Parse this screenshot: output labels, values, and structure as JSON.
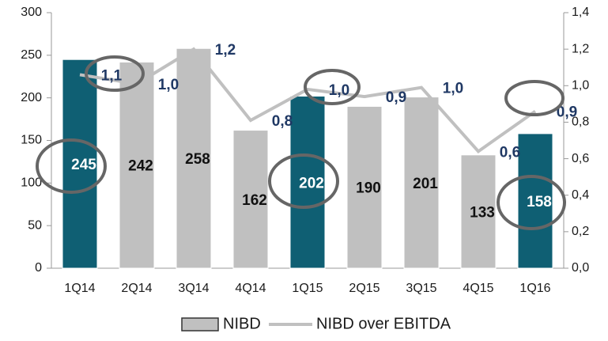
{
  "chart_data": {
    "type": "bar",
    "categories": [
      "1Q14",
      "2Q14",
      "3Q14",
      "4Q14",
      "1Q15",
      "2Q15",
      "3Q15",
      "4Q15",
      "1Q16"
    ],
    "series": [
      {
        "name": "NIBD",
        "type": "bar",
        "color": "#c0c0c0",
        "colors": [
          "#0f5f73",
          "#c0c0c0",
          "#c0c0c0",
          "#c0c0c0",
          "#0f5f73",
          "#c0c0c0",
          "#c0c0c0",
          "#c0c0c0",
          "#0f5f73"
        ],
        "values": [
          245,
          242,
          258,
          162,
          202,
          190,
          201,
          133,
          158
        ]
      },
      {
        "name": "NIBD over EBITDA",
        "type": "line",
        "axis": "y2",
        "color": "#c0c0c0",
        "values": [
          1.06,
          1.01,
          1.2,
          0.81,
          0.98,
          0.94,
          0.99,
          0.64,
          0.86
        ],
        "value_labels": [
          "1,1",
          "1,0",
          "1,2",
          "0,8",
          "1,0",
          "0,9",
          "1,0",
          "0,6",
          "0,9"
        ]
      }
    ],
    "ylim": [
      0,
      300
    ],
    "yticks": [
      0,
      50,
      100,
      150,
      200,
      250,
      300
    ],
    "y2lim": [
      0,
      1.4
    ],
    "y2ticks": [
      {
        "value": 0,
        "label": "0,0"
      },
      {
        "value": 0.2,
        "label": "0,2"
      },
      {
        "value": 0.4,
        "label": "0,4"
      },
      {
        "value": 0.6,
        "label": "0,6"
      },
      {
        "value": 0.8,
        "label": "0,8"
      },
      {
        "value": 1.0,
        "label": "1,0"
      },
      {
        "value": 1.2,
        "label": "1,2"
      },
      {
        "value": 1.4,
        "label": "1,4"
      }
    ],
    "legend": "bottom"
  }
}
